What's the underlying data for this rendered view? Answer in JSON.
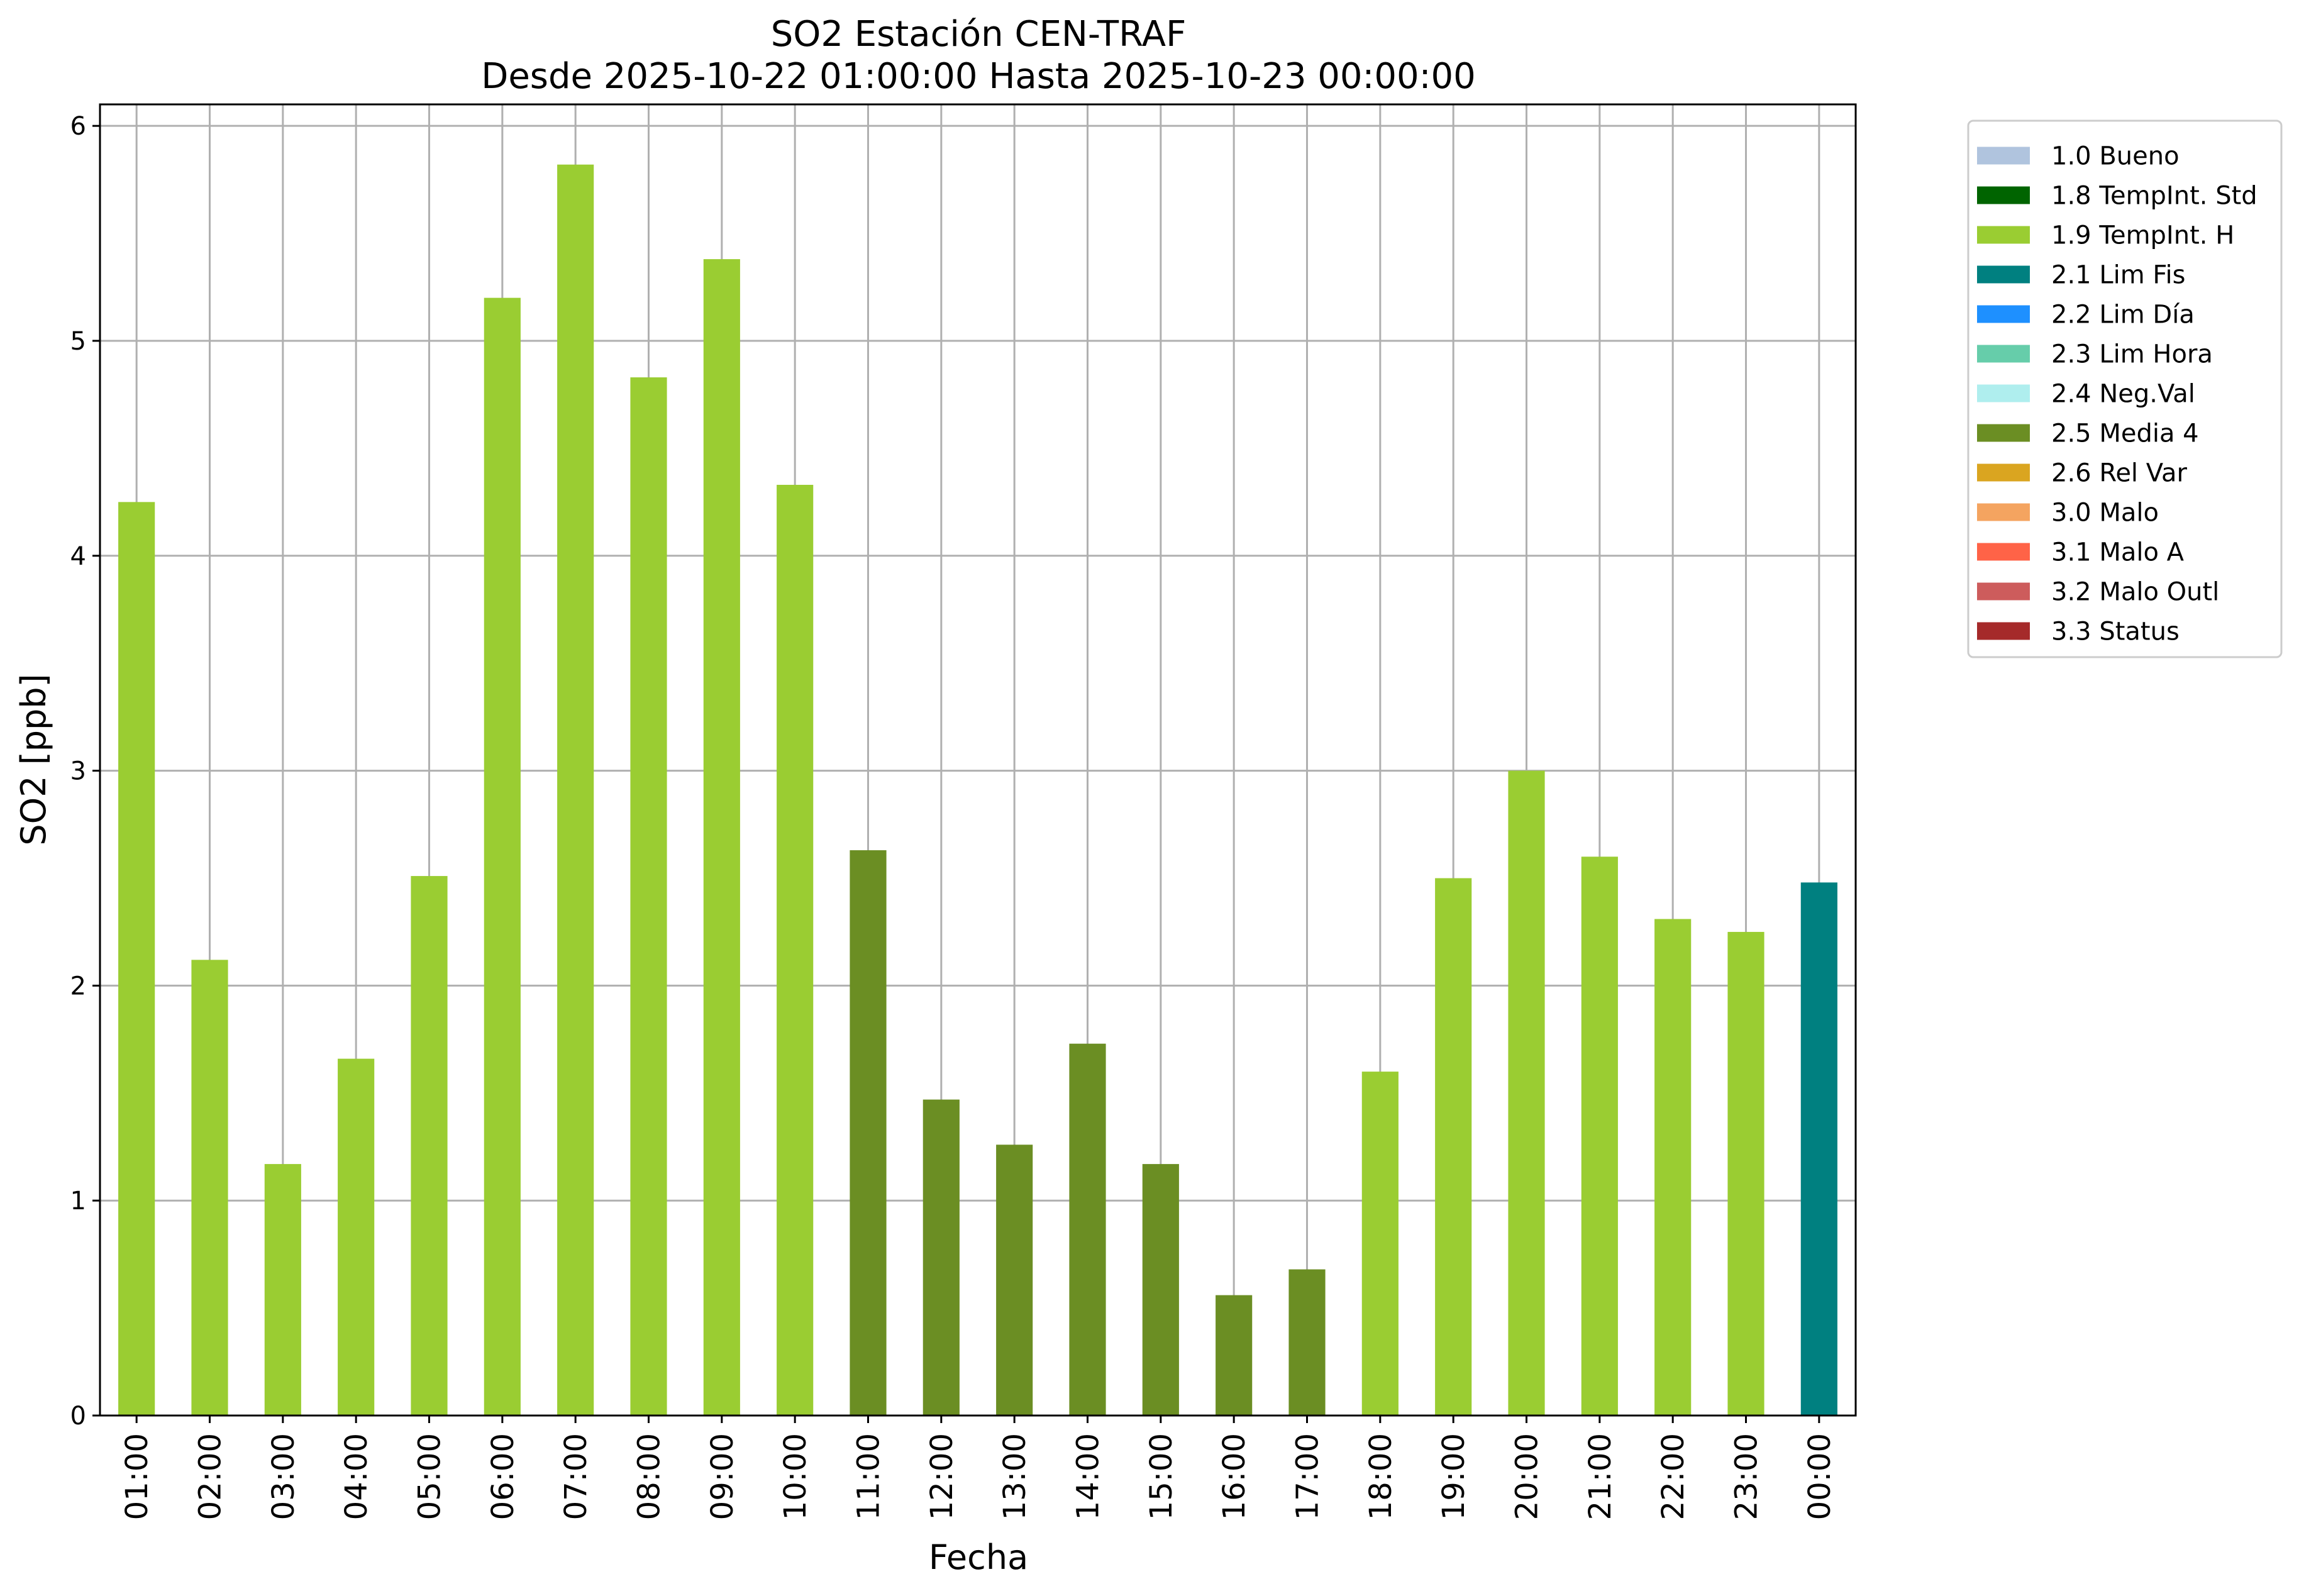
{
  "chart_data": {
    "type": "bar",
    "title": "SO2 Estación CEN-TRAF",
    "subtitle": "Desde 2025-10-22 01:00:00 Hasta 2025-10-23 00:00:00",
    "xlabel": "Fecha",
    "ylabel": "SO2 [ppb]",
    "ylim": [
      0,
      6.1
    ],
    "yticks": [
      "0",
      "1",
      "2",
      "3",
      "4",
      "5",
      "6"
    ],
    "grid": true,
    "legend_placement": "outside-top-right",
    "categories": [
      "01:00",
      "02:00",
      "03:00",
      "04:00",
      "05:00",
      "06:00",
      "07:00",
      "08:00",
      "09:00",
      "10:00",
      "11:00",
      "12:00",
      "13:00",
      "14:00",
      "15:00",
      "16:00",
      "17:00",
      "18:00",
      "19:00",
      "20:00",
      "21:00",
      "22:00",
      "23:00",
      "00:00"
    ],
    "values": [
      4.25,
      2.12,
      1.17,
      1.66,
      2.51,
      5.2,
      5.82,
      4.83,
      5.38,
      4.33,
      2.63,
      1.47,
      1.26,
      1.73,
      1.17,
      0.56,
      0.68,
      1.6,
      2.5,
      3.0,
      2.6,
      2.31,
      2.25,
      2.48
    ],
    "flags": [
      "1.9",
      "1.9",
      "1.9",
      "1.9",
      "1.9",
      "1.9",
      "1.9",
      "1.9",
      "1.9",
      "1.9",
      "2.5",
      "2.5",
      "2.5",
      "2.5",
      "2.5",
      "2.5",
      "2.5",
      "1.9",
      "1.9",
      "1.9",
      "1.9",
      "1.9",
      "1.9",
      "2.1"
    ],
    "legend": [
      {
        "code": "1.0",
        "label": "1.0 Bueno",
        "color": "#b0c4de"
      },
      {
        "code": "1.8",
        "label": "1.8 TempInt. Std",
        "color": "#006400"
      },
      {
        "code": "1.9",
        "label": "1.9 TempInt. H",
        "color": "#9acd32"
      },
      {
        "code": "2.1",
        "label": "2.1 Lim Fis",
        "color": "#008080"
      },
      {
        "code": "2.2",
        "label": "2.2 Lim Día",
        "color": "#1e90ff"
      },
      {
        "code": "2.3",
        "label": "2.3 Lim Hora",
        "color": "#66cdaa"
      },
      {
        "code": "2.4",
        "label": "2.4 Neg.Val",
        "color": "#afeeee"
      },
      {
        "code": "2.5",
        "label": "2.5 Media 4",
        "color": "#6b8e23"
      },
      {
        "code": "2.6",
        "label": "2.6 Rel Var",
        "color": "#daa520"
      },
      {
        "code": "3.0",
        "label": "3.0 Malo",
        "color": "#f4a460"
      },
      {
        "code": "3.1",
        "label": "3.1 Malo A",
        "color": "#ff6347"
      },
      {
        "code": "3.2",
        "label": "3.2 Malo Outl",
        "color": "#cd5c5c"
      },
      {
        "code": "3.3",
        "label": "3.3 Status",
        "color": "#a52a2a"
      }
    ],
    "colors": {
      "grid": "#b0b0b0",
      "axes": "#000000"
    }
  }
}
